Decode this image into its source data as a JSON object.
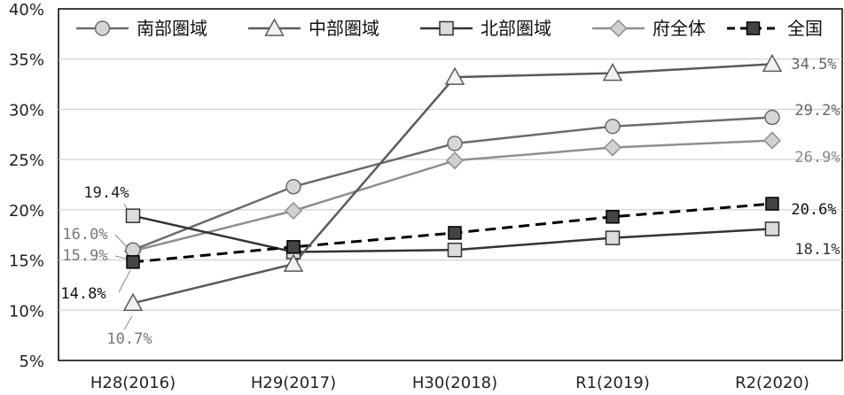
{
  "chart_data": {
    "type": "line",
    "categories": [
      "H28(2016)",
      "H29(2017)",
      "H30(2018)",
      "R1(2019)",
      "R2(2020)"
    ],
    "ylim": [
      5,
      40
    ],
    "yticks": [
      5,
      10,
      15,
      20,
      25,
      30,
      35,
      40
    ],
    "ytick_labels": [
      "5%",
      "10%",
      "15%",
      "20%",
      "25%",
      "30%",
      "35%",
      "40%"
    ],
    "grid": true,
    "legend_position": "top",
    "series": [
      {
        "name": "南部圏域",
        "values": [
          16.0,
          22.3,
          26.6,
          28.3,
          29.2
        ],
        "color": "#6b6b6b",
        "marker": "circle",
        "dashed": false
      },
      {
        "name": "中部圏域",
        "values": [
          10.7,
          14.6,
          33.2,
          33.6,
          34.5
        ],
        "color": "#5a5a5a",
        "marker": "triangle",
        "dashed": false
      },
      {
        "name": "北部圏域",
        "values": [
          19.4,
          15.8,
          16.0,
          17.2,
          18.1
        ],
        "color": "#333333",
        "marker": "square-open",
        "dashed": false
      },
      {
        "name": "府全体",
        "values": [
          15.9,
          19.9,
          24.9,
          26.2,
          26.9
        ],
        "color": "#8f8f8f",
        "marker": "diamond",
        "dashed": false
      },
      {
        "name": "全国",
        "values": [
          14.8,
          16.3,
          17.7,
          19.3,
          20.6
        ],
        "color": "#000000",
        "marker": "square-filled",
        "dashed": true
      }
    ],
    "data_labels": [
      {
        "text": "19.4%",
        "series": 2,
        "point": 0
      },
      {
        "text": "16.0%",
        "series": 0,
        "point": 0
      },
      {
        "text": "15.9%",
        "series": 3,
        "point": 0
      },
      {
        "text": "14.8%",
        "series": 4,
        "point": 0
      },
      {
        "text": "10.7%",
        "series": 1,
        "point": 0
      },
      {
        "text": "34.5%",
        "series": 1,
        "point": 4
      },
      {
        "text": "29.2%",
        "series": 0,
        "point": 4
      },
      {
        "text": "26.9%",
        "series": 3,
        "point": 4
      },
      {
        "text": "20.6%",
        "series": 4,
        "point": 4
      },
      {
        "text": "18.1%",
        "series": 2,
        "point": 4
      }
    ]
  }
}
